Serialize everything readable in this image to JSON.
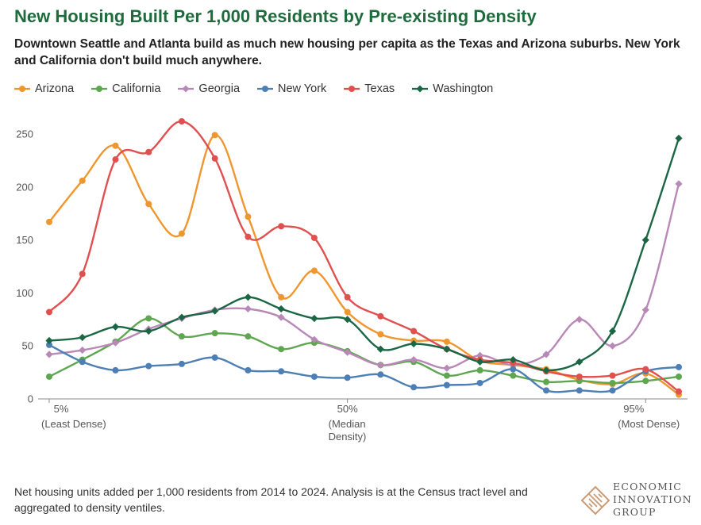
{
  "title": "New Housing Built Per 1,000 Residents by Pre-existing Density",
  "subtitle": "Downtown Seattle and Atlanta build as much new housing per capita as the Texas and Arizona suburbs. New York and California don't build much anywhere.",
  "footnote": "Net housing units added per 1,000 residents from 2014 to 2024. Analysis is at the Census tract level and aggregated to density ventiles.",
  "logo": {
    "line1": "ECONOMIC",
    "line2": "INNOVATION",
    "line3": "GROUP"
  },
  "chart_data": {
    "type": "line",
    "title": "New Housing Built Per 1,000 Residents by Pre-existing Density",
    "x": [
      1,
      2,
      3,
      4,
      5,
      6,
      7,
      8,
      9,
      10,
      11,
      12,
      13,
      14,
      15,
      16,
      17,
      18,
      19,
      20
    ],
    "x_ticks": [
      {
        "x": 1,
        "label": "5%",
        "sublabel": "(Least Dense)"
      },
      {
        "x": 10,
        "label": "50%",
        "sublabel": "(Median Density)"
      },
      {
        "x": 19,
        "label": "95%",
        "sublabel": "(Most Dense)"
      }
    ],
    "y_ticks": [
      0,
      50,
      100,
      150,
      200,
      250
    ],
    "ylim": [
      0,
      265
    ],
    "legend_position": "top-left",
    "grid": false,
    "series": [
      {
        "name": "Arizona",
        "color": "#f0962e",
        "marker": "circle",
        "values": [
          167,
          206,
          239,
          184,
          156,
          249,
          172,
          96,
          121,
          82,
          61,
          55,
          54,
          36,
          32,
          28,
          18,
          14,
          24,
          4
        ]
      },
      {
        "name": "California",
        "color": "#5fa651",
        "marker": "circle",
        "values": [
          21,
          37,
          54,
          76,
          59,
          62,
          59,
          47,
          53,
          45,
          32,
          35,
          22,
          27,
          22,
          16,
          17,
          15,
          17,
          21
        ]
      },
      {
        "name": "Georgia",
        "color": "#b889b6",
        "marker": "diamond",
        "values": [
          42,
          46,
          53,
          66,
          76,
          84,
          85,
          77,
          56,
          44,
          32,
          37,
          29,
          41,
          32,
          42,
          75,
          50,
          84,
          203
        ]
      },
      {
        "name": "New York",
        "color": "#4d7fb5",
        "marker": "circle",
        "values": [
          51,
          35,
          27,
          31,
          33,
          39,
          27,
          26,
          21,
          20,
          23,
          11,
          13,
          15,
          28,
          8,
          8,
          8,
          26,
          30
        ]
      },
      {
        "name": "Texas",
        "color": "#e0504f",
        "marker": "circle",
        "values": [
          82,
          118,
          226,
          233,
          262,
          227,
          153,
          163,
          152,
          96,
          78,
          64,
          47,
          37,
          34,
          26,
          21,
          22,
          28,
          7
        ]
      },
      {
        "name": "Washington",
        "color": "#1b6644",
        "marker": "diamond",
        "values": [
          55,
          58,
          68,
          64,
          77,
          83,
          96,
          85,
          76,
          75,
          47,
          52,
          47,
          35,
          37,
          27,
          35,
          64,
          150,
          246
        ]
      }
    ]
  }
}
